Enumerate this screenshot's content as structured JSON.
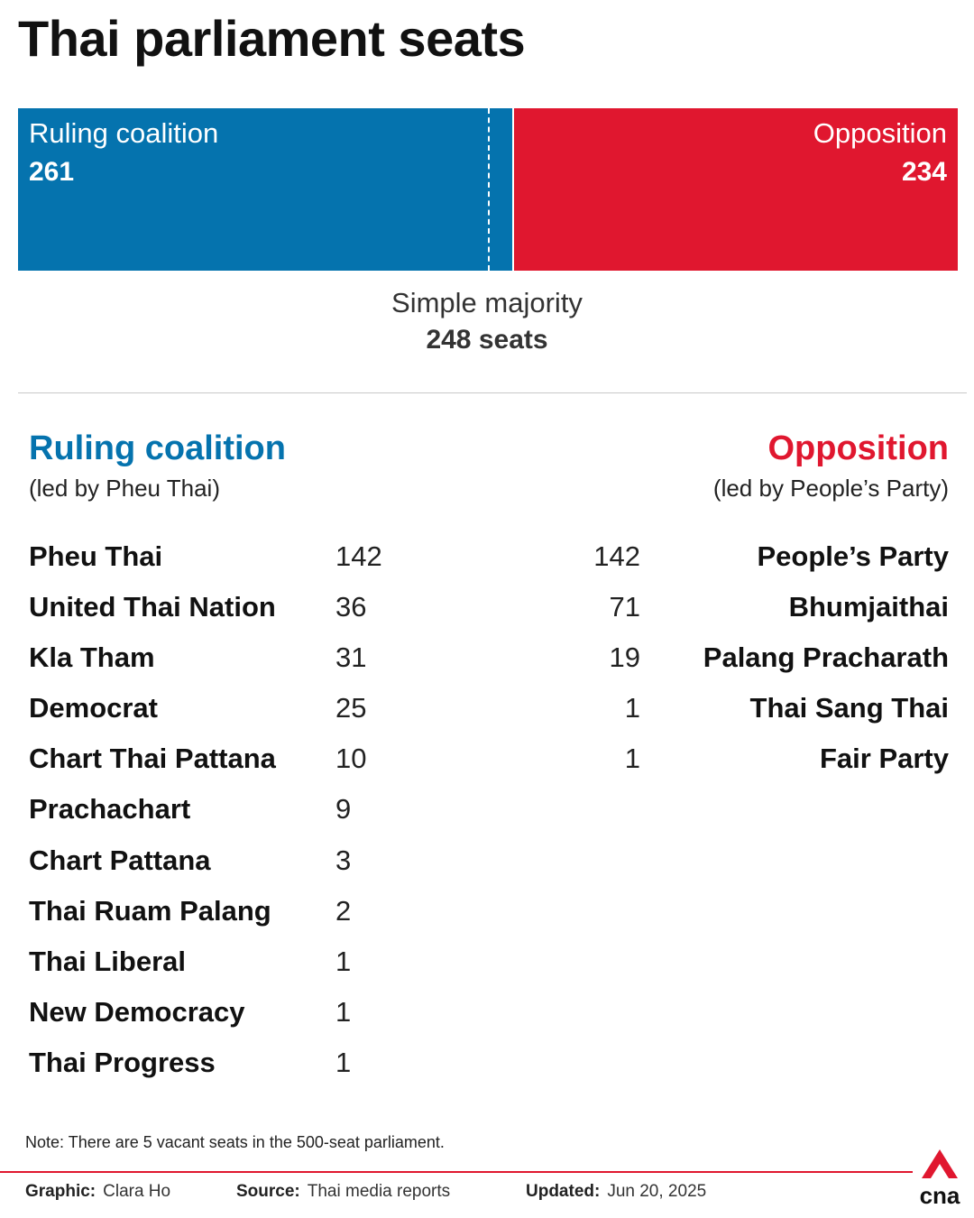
{
  "title": "Thai parliament seats",
  "chart_data": {
    "type": "bar",
    "stacked_horizontal": true,
    "total_seats": 500,
    "series": [
      {
        "name": "Ruling coalition",
        "value": 261,
        "color": "#0573ae"
      },
      {
        "name": "Opposition",
        "value": 234,
        "color": "#e0172f"
      }
    ],
    "majority": {
      "label": "Simple majority",
      "value": 248,
      "value_text": "248 seats"
    }
  },
  "bar_labels": {
    "ruling_label": "Ruling coalition",
    "ruling_value": "261",
    "opposition_label": "Opposition",
    "opposition_value": "234"
  },
  "ruling": {
    "heading": "Ruling coalition",
    "subheading": "(led by Pheu Thai)",
    "parties": [
      {
        "name": "Pheu Thai",
        "seats": "142"
      },
      {
        "name": "United Thai Nation",
        "seats": "36"
      },
      {
        "name": "Kla Tham",
        "seats": "31"
      },
      {
        "name": "Democrat",
        "seats": "25"
      },
      {
        "name": "Chart Thai Pattana",
        "seats": "10"
      },
      {
        "name": "Prachachart",
        "seats": "9"
      },
      {
        "name": "Chart Pattana",
        "seats": "3"
      },
      {
        "name": "Thai Ruam Palang",
        "seats": "2"
      },
      {
        "name": "Thai Liberal",
        "seats": "1"
      },
      {
        "name": "New Democracy",
        "seats": "1"
      },
      {
        "name": "Thai Progress",
        "seats": "1"
      }
    ]
  },
  "opposition": {
    "heading": "Opposition",
    "subheading": "(led by People’s Party)",
    "parties": [
      {
        "name": "People’s Party",
        "seats": "142"
      },
      {
        "name": "Bhumjaithai",
        "seats": "71"
      },
      {
        "name": "Palang Pracharath",
        "seats": "19"
      },
      {
        "name": "Thai Sang Thai",
        "seats": "1"
      },
      {
        "name": "Fair Party",
        "seats": "1"
      }
    ]
  },
  "note": "Note: There are 5 vacant seats in the 500-seat parliament.",
  "footer": {
    "graphic_label": "Graphic:",
    "graphic_value": "Clara Ho",
    "source_label": "Source:",
    "source_value": "Thai media reports",
    "updated_label": "Updated:",
    "updated_value": "Jun 20, 2025"
  },
  "logo": {
    "text": "cna",
    "icon": "cna-logo-icon"
  },
  "colors": {
    "ruling": "#0573ae",
    "opposition": "#e0172f"
  }
}
